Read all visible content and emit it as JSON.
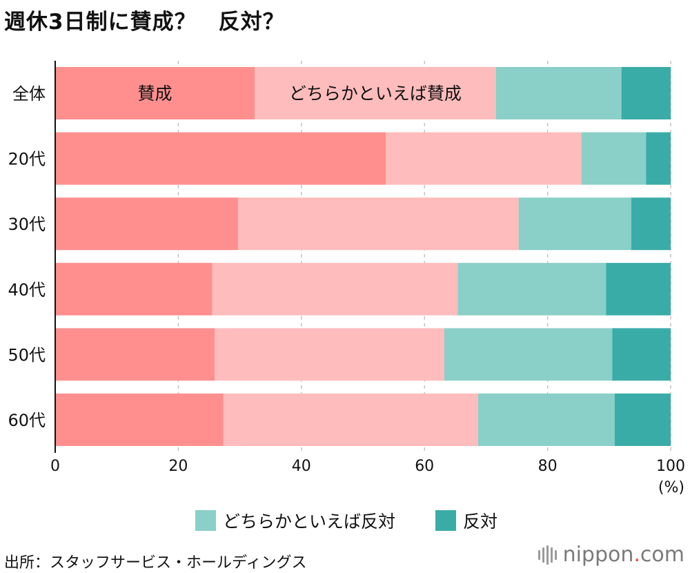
{
  "title": "週休3日制に賛成？　反対？",
  "colors": {
    "agree": "#ff8f8f",
    "somewhat_agree": "#ffbcbc",
    "somewhat_disagree": "#8acfc8",
    "disagree": "#3aaca8",
    "grid": "#bbbbbb",
    "axis": "#111111"
  },
  "chart_data": {
    "type": "bar",
    "orientation": "horizontal",
    "stacked": true,
    "categories": [
      "全体",
      "20代",
      "30代",
      "40代",
      "50代",
      "60代"
    ],
    "series": [
      {
        "name": "賛成",
        "values": [
          32.4,
          53.7,
          29.7,
          25.5,
          25.9,
          27.3
        ]
      },
      {
        "name": "どちらかといえば賛成",
        "values": [
          39.2,
          31.8,
          45.6,
          39.9,
          37.3,
          41.4
        ]
      },
      {
        "name": "どちらかといえば反対",
        "values": [
          20.4,
          10.5,
          18.3,
          24.1,
          27.3,
          22.2
        ]
      },
      {
        "name": "反対",
        "values": [
          8.0,
          4.0,
          6.4,
          10.5,
          9.5,
          9.1
        ]
      }
    ],
    "inline_labels": [
      "賛成",
      "どちらかといえば賛成"
    ],
    "xlim": [
      0,
      100
    ],
    "xticks": [
      "0",
      "20",
      "40",
      "60",
      "80",
      "100"
    ],
    "xunit": "(%)",
    "grid": true,
    "legend": {
      "position": "bottom",
      "items": [
        "どちらかといえば反対",
        "反対"
      ]
    }
  },
  "source": "出所：スタッフサービス・ホールディングス",
  "logo": {
    "main": "nippon",
    "dot": ".",
    "suffix": "com"
  }
}
